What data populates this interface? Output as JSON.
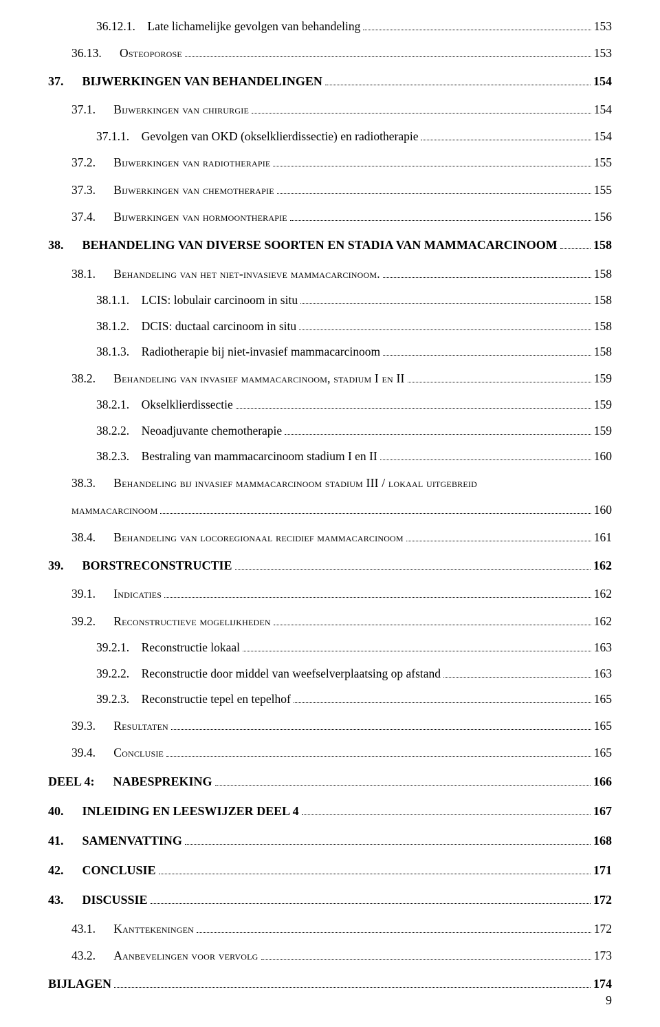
{
  "page_number": "9",
  "entries": [
    {
      "level": 3,
      "num": "36.12.1.",
      "gap": "  ",
      "title": "Late lichamelijke gevolgen van behandeling",
      "pg": "153",
      "sc": false
    },
    {
      "level": 2,
      "num": "36.13.",
      "gap": "   ",
      "title": "Osteoporose",
      "pg": "153",
      "sc": true
    },
    {
      "level": 1,
      "num": "37.",
      "gap": "   ",
      "title": "BIJWERKINGEN VAN BEHANDELINGEN",
      "pg": "154",
      "sc": false
    },
    {
      "level": 2,
      "num": "37.1.",
      "gap": "   ",
      "title": "Bijwerkingen van chirurgie",
      "pg": "154",
      "sc": true
    },
    {
      "level": 3,
      "num": "37.1.1.",
      "gap": "  ",
      "title": "Gevolgen van OKD (okselklierdissectie) en radiotherapie",
      "pg": "154",
      "sc": false
    },
    {
      "level": 2,
      "num": "37.2.",
      "gap": "   ",
      "title": "Bijwerkingen van radiotherapie",
      "pg": "155",
      "sc": true
    },
    {
      "level": 2,
      "num": "37.3.",
      "gap": "   ",
      "title": "Bijwerkingen van chemotherapie",
      "pg": "155",
      "sc": true
    },
    {
      "level": 2,
      "num": "37.4.",
      "gap": "   ",
      "title": "Bijwerkingen van hormoontherapie",
      "pg": "156",
      "sc": true
    },
    {
      "level": 1,
      "num": "38.",
      "gap": "   ",
      "title": "BEHANDELING VAN DIVERSE SOORTEN EN STADIA VAN MAMMACARCINOOM",
      "pg": "158",
      "sc": false
    },
    {
      "level": 2,
      "num": "38.1.",
      "gap": "   ",
      "title": "Behandeling van het niet-invasieve mammacarcinoom.",
      "pg": "158",
      "sc": true
    },
    {
      "level": 3,
      "num": "38.1.1.",
      "gap": "  ",
      "title": "LCIS: lobulair carcinoom in situ",
      "pg": "158",
      "sc": false
    },
    {
      "level": 3,
      "num": "38.1.2.",
      "gap": "  ",
      "title": "DCIS: ductaal carcinoom in situ",
      "pg": "158",
      "sc": false
    },
    {
      "level": 3,
      "num": "38.1.3.",
      "gap": "  ",
      "title": "Radiotherapie bij niet-invasief mammacarcinoom",
      "pg": "158",
      "sc": false
    },
    {
      "level": 2,
      "num": "38.2.",
      "gap": "   ",
      "title": "Behandeling van invasief mammacarcinoom, stadium I en II",
      "pg": "159",
      "sc": true
    },
    {
      "level": 3,
      "num": "38.2.1.",
      "gap": "  ",
      "title": "Okselklierdissectie",
      "pg": "159",
      "sc": false
    },
    {
      "level": 3,
      "num": "38.2.2.",
      "gap": "  ",
      "title": "Neoadjuvante chemotherapie",
      "pg": "159",
      "sc": false
    },
    {
      "level": 3,
      "num": "38.2.3.",
      "gap": "  ",
      "title": "Bestraling van mammacarcinoom stadium I en II",
      "pg": "160",
      "sc": false
    },
    {
      "level": 2,
      "num": "38.3.",
      "gap": "   ",
      "title": "Behandeling bij invasief mammacarcinoom stadium III / lokaal uitgebreid",
      "pg": "",
      "sc": true,
      "nodots": true
    },
    {
      "level": 2,
      "num": "",
      "gap": "",
      "title": "mammacarcinoom",
      "pg": "160",
      "sc": true,
      "continuation": true
    },
    {
      "level": 2,
      "num": "38.4.",
      "gap": "   ",
      "title": "Behandeling van locoregionaal recidief mammacarcinoom",
      "pg": "161",
      "sc": true
    },
    {
      "level": 1,
      "num": "39.",
      "gap": "   ",
      "title": "BORSTRECONSTRUCTIE",
      "pg": "162",
      "sc": false
    },
    {
      "level": 2,
      "num": "39.1.",
      "gap": "   ",
      "title": "Indicaties",
      "pg": "162",
      "sc": true
    },
    {
      "level": 2,
      "num": "39.2.",
      "gap": "   ",
      "title": "Reconstructieve mogelijkheden",
      "pg": "162",
      "sc": true
    },
    {
      "level": 3,
      "num": "39.2.1.",
      "gap": "  ",
      "title": "Reconstructie lokaal",
      "pg": "163",
      "sc": false
    },
    {
      "level": 3,
      "num": "39.2.2.",
      "gap": "  ",
      "title": "Reconstructie door middel van weefselverplaatsing op afstand",
      "pg": "163",
      "sc": false
    },
    {
      "level": 3,
      "num": "39.2.3.",
      "gap": "  ",
      "title": "Reconstructie tepel en tepelhof",
      "pg": "165",
      "sc": false
    },
    {
      "level": 2,
      "num": "39.3.",
      "gap": "   ",
      "title": "Resultaten",
      "pg": "165",
      "sc": true
    },
    {
      "level": 2,
      "num": "39.4.",
      "gap": "   ",
      "title": "Conclusie",
      "pg": "165",
      "sc": true
    },
    {
      "level": 0,
      "num": "DEEL 4:",
      "gap": "   ",
      "title": "NABESPREKING",
      "pg": "166",
      "sc": false
    },
    {
      "level": 1,
      "num": "40.",
      "gap": "   ",
      "title": "INLEIDING EN LEESWIJZER DEEL 4",
      "pg": "167",
      "sc": false
    },
    {
      "level": 1,
      "num": "41.",
      "gap": "   ",
      "title": "SAMENVATTING",
      "pg": "168",
      "sc": false
    },
    {
      "level": 1,
      "num": "42.",
      "gap": "   ",
      "title": "CONCLUSIE",
      "pg": "171",
      "sc": false
    },
    {
      "level": 1,
      "num": "43.",
      "gap": "   ",
      "title": "DISCUSSIE",
      "pg": "172",
      "sc": false
    },
    {
      "level": 2,
      "num": "43.1.",
      "gap": "   ",
      "title": "Kanttekeningen",
      "pg": "172",
      "sc": true
    },
    {
      "level": 2,
      "num": "43.2.",
      "gap": "   ",
      "title": "Aanbevelingen voor vervolg",
      "pg": "173",
      "sc": true
    },
    {
      "level": 0,
      "num": "BIJLAGEN",
      "gap": "",
      "title": "",
      "pg": "174",
      "sc": false
    }
  ]
}
